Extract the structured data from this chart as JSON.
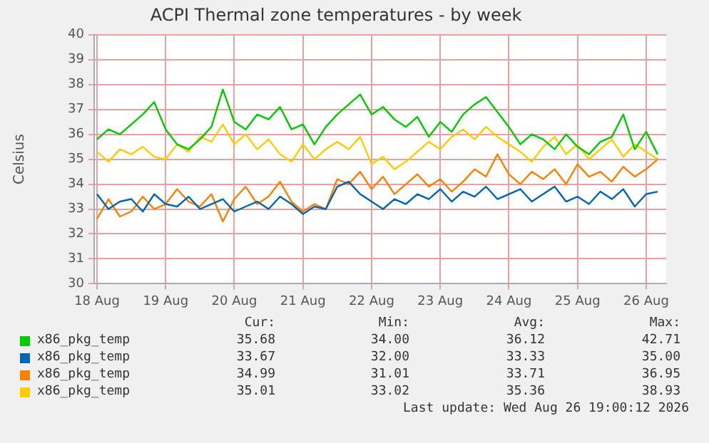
{
  "chart_data": {
    "type": "line",
    "title": "ACPI Thermal zone temperatures - by week",
    "ylabel": "Celsius",
    "x": [
      "2026-08-18T12:00",
      "2026-08-18T16:00",
      "2026-08-18T20:00",
      "2026-08-19T00:00",
      "2026-08-19T04:00",
      "2026-08-19T08:00",
      "2026-08-19T12:00",
      "2026-08-19T16:00",
      "2026-08-19T20:00",
      "2026-08-20T00:00",
      "2026-08-20T04:00",
      "2026-08-20T08:00",
      "2026-08-20T12:00",
      "2026-08-20T16:00",
      "2026-08-20T20:00",
      "2026-08-21T00:00",
      "2026-08-21T04:00",
      "2026-08-21T08:00",
      "2026-08-21T12:00",
      "2026-08-21T16:00",
      "2026-08-21T20:00",
      "2026-08-22T00:00",
      "2026-08-22T04:00",
      "2026-08-22T08:00",
      "2026-08-22T12:00",
      "2026-08-22T16:00",
      "2026-08-22T20:00",
      "2026-08-23T00:00",
      "2026-08-23T04:00",
      "2026-08-23T08:00",
      "2026-08-23T12:00",
      "2026-08-23T16:00",
      "2026-08-23T20:00",
      "2026-08-24T00:00",
      "2026-08-24T04:00",
      "2026-08-24T08:00",
      "2026-08-24T12:00",
      "2026-08-24T16:00",
      "2026-08-24T20:00",
      "2026-08-25T00:00",
      "2026-08-25T04:00",
      "2026-08-25T08:00",
      "2026-08-25T12:00",
      "2026-08-25T16:00",
      "2026-08-25T20:00",
      "2026-08-26T00:00",
      "2026-08-26T04:00",
      "2026-08-26T08:00",
      "2026-08-26T12:00",
      "2026-08-26T16:00"
    ],
    "series": [
      {
        "name": "x86_pkg_temp",
        "color": "#00cc00",
        "values": [
          35.8,
          36.2,
          36.0,
          36.4,
          36.8,
          37.3,
          36.2,
          35.6,
          35.4,
          35.8,
          36.3,
          37.8,
          36.5,
          36.2,
          36.8,
          36.6,
          37.1,
          36.2,
          36.4,
          35.6,
          36.3,
          36.8,
          37.2,
          37.6,
          36.8,
          37.1,
          36.6,
          36.3,
          36.7,
          35.9,
          36.5,
          36.1,
          36.8,
          37.2,
          37.5,
          36.9,
          36.3,
          35.6,
          36.0,
          35.8,
          35.4,
          36.0,
          35.5,
          35.2,
          35.7,
          35.9,
          36.8,
          35.4,
          36.1,
          35.2
        ]
      },
      {
        "name": "x86_pkg_temp",
        "color": "#0066b3",
        "values": [
          33.6,
          33.0,
          33.3,
          33.4,
          32.9,
          33.6,
          33.2,
          33.1,
          33.5,
          33.0,
          33.2,
          33.4,
          32.9,
          33.1,
          33.3,
          33.0,
          33.5,
          33.2,
          32.8,
          33.1,
          33.0,
          33.9,
          34.1,
          33.6,
          33.3,
          33.0,
          33.4,
          33.2,
          33.6,
          33.4,
          33.8,
          33.3,
          33.7,
          33.5,
          33.9,
          33.4,
          33.6,
          33.8,
          33.3,
          33.6,
          33.9,
          33.3,
          33.5,
          33.2,
          33.7,
          33.4,
          33.8,
          33.1,
          33.6,
          33.7
        ]
      },
      {
        "name": "x86_pkg_temp",
        "color": "#ff8000",
        "values": [
          32.6,
          33.4,
          32.7,
          32.9,
          33.5,
          33.0,
          33.2,
          33.8,
          33.3,
          33.1,
          33.6,
          32.5,
          33.4,
          33.9,
          33.2,
          33.5,
          34.1,
          33.3,
          32.9,
          33.2,
          33.0,
          34.2,
          34.0,
          34.5,
          33.8,
          34.3,
          33.6,
          34.0,
          34.4,
          33.9,
          34.2,
          33.7,
          34.1,
          34.6,
          34.3,
          35.2,
          34.4,
          34.0,
          34.5,
          34.2,
          34.6,
          34.0,
          34.8,
          34.3,
          34.5,
          34.1,
          34.7,
          34.3,
          34.6,
          35.0
        ]
      },
      {
        "name": "x86_pkg_temp",
        "color": "#ffcc00",
        "values": [
          35.3,
          34.9,
          35.4,
          35.2,
          35.5,
          35.1,
          35.0,
          35.6,
          35.3,
          35.9,
          35.7,
          36.4,
          35.6,
          36.0,
          35.4,
          35.8,
          35.2,
          34.9,
          35.6,
          35.0,
          35.4,
          35.7,
          35.4,
          35.9,
          34.8,
          35.1,
          34.6,
          34.9,
          35.3,
          35.7,
          35.4,
          35.9,
          36.2,
          35.8,
          36.3,
          35.9,
          35.6,
          35.3,
          34.9,
          35.5,
          35.9,
          35.2,
          35.6,
          35.0,
          35.4,
          35.8,
          35.1,
          35.6,
          35.3,
          35.0
        ]
      }
    ],
    "xlim": [
      "2026-08-18T11:00",
      "2026-08-26T19:00"
    ],
    "xticks": [
      {
        "value": "2026-08-18T12:00",
        "label": "18 Aug"
      },
      {
        "value": "2026-08-19T12:00",
        "label": "19 Aug"
      },
      {
        "value": "2026-08-20T12:00",
        "label": "20 Aug"
      },
      {
        "value": "2026-08-21T12:00",
        "label": "21 Aug"
      },
      {
        "value": "2026-08-22T12:00",
        "label": "22 Aug"
      },
      {
        "value": "2026-08-23T12:00",
        "label": "23 Aug"
      },
      {
        "value": "2026-08-24T12:00",
        "label": "24 Aug"
      },
      {
        "value": "2026-08-25T12:00",
        "label": "25 Aug"
      },
      {
        "value": "2026-08-26T12:00",
        "label": "26 Aug"
      }
    ],
    "ylim": [
      30,
      40
    ],
    "yticks": [
      30,
      31,
      32,
      33,
      34,
      35,
      36,
      37,
      38,
      39,
      40
    ],
    "grid": true,
    "legend": "bottom",
    "marker": "none",
    "line_style": "solid",
    "annotations": [
      "Cur:",
      "Min:",
      "Avg:",
      "Max:",
      "35.68",
      "34.00",
      "36.12",
      "42.71",
      "33.67",
      "32.00",
      "33.33",
      "35.00",
      "34.99",
      "31.01",
      "33.71",
      "36.95",
      "35.01",
      "33.02",
      "35.36",
      "38.93",
      "Last update: Wed Aug 26 19:00:12 2026"
    ]
  }
}
